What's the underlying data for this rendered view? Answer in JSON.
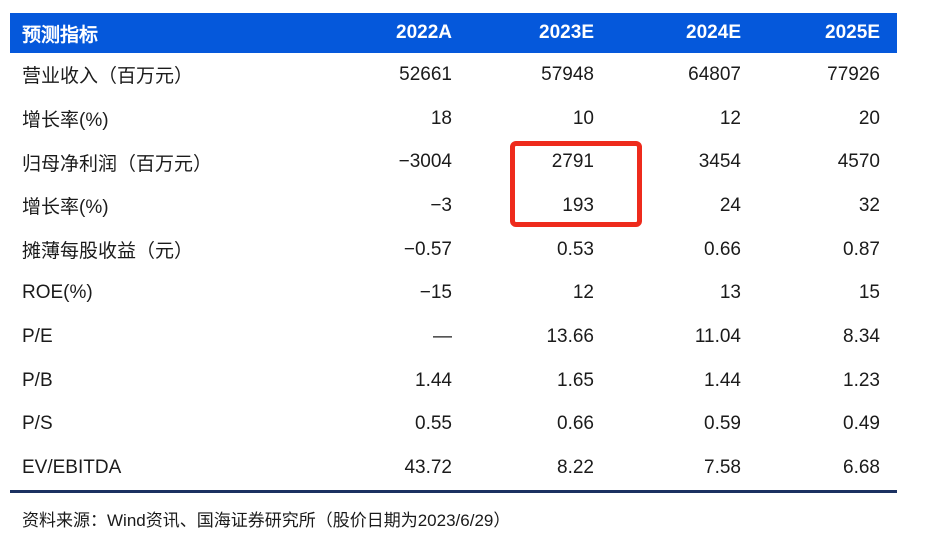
{
  "colors": {
    "header_bg": "#0558DB",
    "header_text": "#FFFFFF",
    "body_text": "#1B1B1B",
    "bottom_rule": "#1B3161",
    "highlight_border": "#EE2B1C"
  },
  "table": {
    "header": {
      "label": "预测指标",
      "years": [
        "2022A",
        "2023E",
        "2024E",
        "2025E"
      ]
    },
    "rows": [
      {
        "label": "营业收入（百万元）",
        "values": [
          "52661",
          "57948",
          "64807",
          "77926"
        ]
      },
      {
        "label": "增长率(%)",
        "values": [
          "18",
          "10",
          "12",
          "20"
        ]
      },
      {
        "label": "归母净利润（百万元）",
        "values": [
          "−3004",
          "2791",
          "3454",
          "4570"
        ]
      },
      {
        "label": "增长率(%)",
        "values": [
          "−3",
          "193",
          "24",
          "32"
        ]
      },
      {
        "label": "摊薄每股收益（元）",
        "values": [
          "−0.57",
          "0.53",
          "0.66",
          "0.87"
        ]
      },
      {
        "label": "ROE(%)",
        "values": [
          "−15",
          "12",
          "13",
          "15"
        ]
      },
      {
        "label": "P/E",
        "values": [
          "—",
          "13.66",
          "11.04",
          "8.34"
        ]
      },
      {
        "label": "P/B",
        "values": [
          "1.44",
          "1.65",
          "1.44",
          "1.23"
        ]
      },
      {
        "label": "P/S",
        "values": [
          "0.55",
          "0.66",
          "0.59",
          "0.49"
        ]
      },
      {
        "label": "EV/EBITDA",
        "values": [
          "43.72",
          "8.22",
          "7.58",
          "6.68"
        ]
      }
    ]
  },
  "highlight": {
    "description": "red box around 2023E net profit and its growth rate",
    "highlighted_values": [
      "2791",
      "193"
    ]
  },
  "footer": {
    "source": "资料来源：Wind资讯、国海证券研究所（股价日期为2023/6/29）"
  }
}
